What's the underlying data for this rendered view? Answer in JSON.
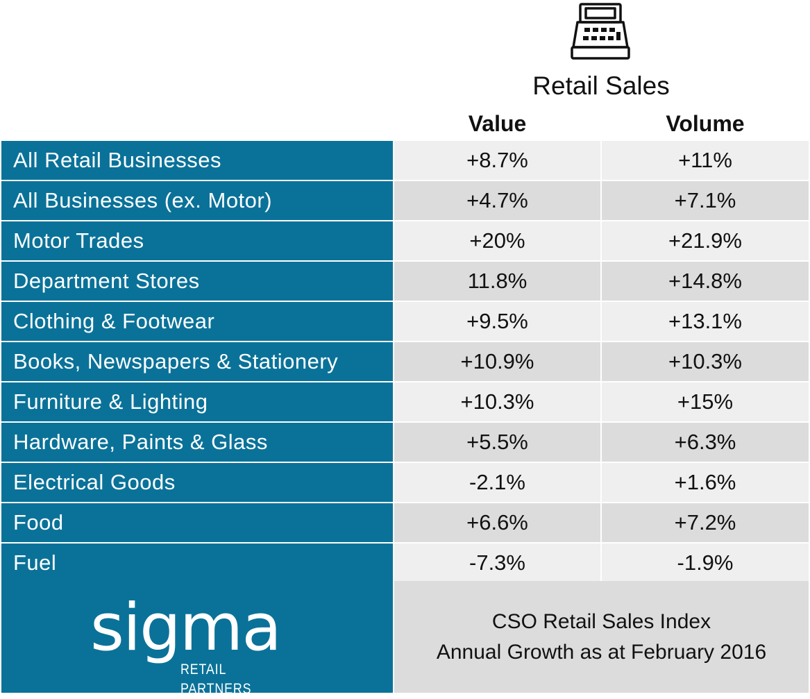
{
  "header": {
    "icon": "cash-register-icon",
    "title": "Retail Sales",
    "columns": [
      "Value",
      "Volume"
    ]
  },
  "rows": [
    {
      "label": "All Retail Businesses",
      "value": "+8.7%",
      "volume": "+11%"
    },
    {
      "label": "All Businesses (ex. Motor)",
      "value": "+4.7%",
      "volume": "+7.1%"
    },
    {
      "label": "Motor Trades",
      "value": "+20%",
      "volume": "+21.9%"
    },
    {
      "label": "Department Stores",
      "value": "11.8%",
      "volume": "+14.8%"
    },
    {
      "label": "Clothing & Footwear",
      "value": "+9.5%",
      "volume": "+13.1%"
    },
    {
      "label": "Books, Newspapers & Stationery",
      "value": "+10.9%",
      "volume": "+10.3%"
    },
    {
      "label": "Furniture & Lighting",
      "value": "+10.3%",
      "volume": "+15%"
    },
    {
      "label": "Hardware, Paints & Glass",
      "value": "+5.5%",
      "volume": "+6.3%"
    },
    {
      "label": "Electrical Goods",
      "value": "-2.1%",
      "volume": "+1.6%"
    },
    {
      "label": "Food",
      "value": "+6.6%",
      "volume": "+7.2%"
    },
    {
      "label": "Fuel",
      "value": "-7.3%",
      "volume": "-1.9%"
    }
  ],
  "footer": {
    "logo": {
      "word": "sigma",
      "tagline": "RETAIL PARTNERS"
    },
    "caption_line1": "CSO Retail Sales Index",
    "caption_line2": "Annual Growth as at February 2016"
  },
  "colors": {
    "brand_blue": "#0a7299",
    "cell_light": "#efefef",
    "cell_dark": "#dcdcdc"
  }
}
